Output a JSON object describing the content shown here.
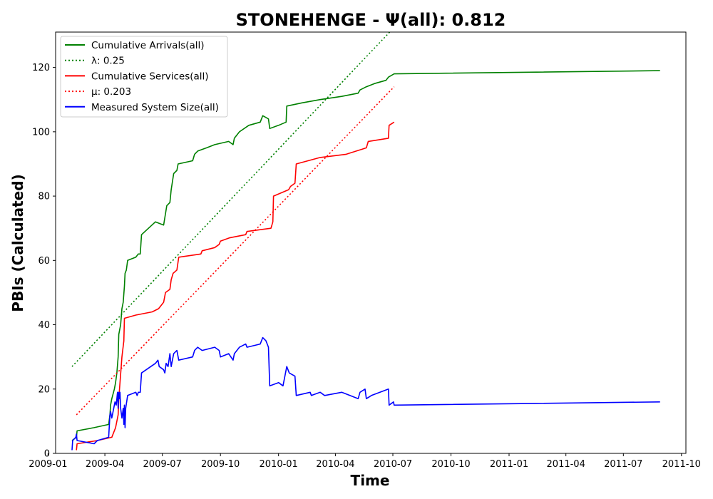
{
  "chart_data": {
    "type": "line",
    "title": "STONEHENGE -  Ψ(all): 0.812",
    "xlabel": "Time",
    "ylabel": "PBIs (Calculated)",
    "xlim": [
      "2009-01-13",
      "2011-10-08"
    ],
    "ylim": [
      0,
      131
    ],
    "x_ticks": [
      "2009-01",
      "2009-04",
      "2009-07",
      "2009-10",
      "2010-01",
      "2010-04",
      "2010-07",
      "2010-10",
      "2011-01",
      "2011-04",
      "2011-07",
      "2011-10"
    ],
    "y_ticks": [
      0,
      20,
      40,
      60,
      80,
      100,
      120
    ],
    "grid": false,
    "legend_position": "top-left",
    "legend": [
      {
        "label": "Cumulative Arrivals(all)",
        "color": "#008000",
        "style": "solid"
      },
      {
        "label": "λ: 0.25",
        "color": "#008000",
        "style": "dotted"
      },
      {
        "label": "Cumulative Services(all)",
        "color": "#ff0000",
        "style": "solid"
      },
      {
        "label": "μ: 0.203",
        "color": "#ff0000",
        "style": "dotted"
      },
      {
        "label": "Measured System Size(all)",
        "color": "#0000ff",
        "style": "solid"
      }
    ],
    "series": [
      {
        "name": "Cumulative Arrivals(all)",
        "color": "#008000",
        "style": "solid",
        "points": [
          [
            "2009-02-08",
            4
          ],
          [
            "2009-02-15",
            5
          ],
          [
            "2009-02-16",
            7
          ],
          [
            "2009-03-15",
            8
          ],
          [
            "2009-04-07",
            9
          ],
          [
            "2009-04-09",
            12
          ],
          [
            "2009-04-10",
            15
          ],
          [
            "2009-04-12",
            17
          ],
          [
            "2009-04-16",
            20
          ],
          [
            "2009-04-18",
            22
          ],
          [
            "2009-04-20",
            25
          ],
          [
            "2009-04-22",
            30
          ],
          [
            "2009-04-23",
            37
          ],
          [
            "2009-04-26",
            40
          ],
          [
            "2009-04-28",
            45
          ],
          [
            "2009-04-30",
            47
          ],
          [
            "2009-05-02",
            52
          ],
          [
            "2009-05-03",
            56
          ],
          [
            "2009-05-05",
            57
          ],
          [
            "2009-05-07",
            60
          ],
          [
            "2009-05-20",
            61
          ],
          [
            "2009-05-24",
            62
          ],
          [
            "2009-05-27",
            62
          ],
          [
            "2009-05-29",
            68
          ],
          [
            "2009-06-20",
            72
          ],
          [
            "2009-07-03",
            71
          ],
          [
            "2009-07-08",
            77
          ],
          [
            "2009-07-13",
            78
          ],
          [
            "2009-07-15",
            82
          ],
          [
            "2009-07-19",
            87
          ],
          [
            "2009-07-24",
            88
          ],
          [
            "2009-07-26",
            90
          ],
          [
            "2009-08-18",
            91
          ],
          [
            "2009-08-21",
            93
          ],
          [
            "2009-08-26",
            94
          ],
          [
            "2009-09-09",
            95
          ],
          [
            "2009-09-22",
            96
          ],
          [
            "2009-10-14",
            97
          ],
          [
            "2009-10-21",
            96
          ],
          [
            "2009-10-23",
            98
          ],
          [
            "2009-10-31",
            100
          ],
          [
            "2009-11-15",
            102
          ],
          [
            "2009-12-03",
            103
          ],
          [
            "2009-12-07",
            105
          ],
          [
            "2009-12-16",
            104
          ],
          [
            "2009-12-18",
            101
          ],
          [
            "2010-01-01",
            102
          ],
          [
            "2010-01-13",
            103
          ],
          [
            "2010-01-14",
            108
          ],
          [
            "2010-02-07",
            109
          ],
          [
            "2010-03-08",
            110
          ],
          [
            "2010-04-11",
            111
          ],
          [
            "2010-05-07",
            112
          ],
          [
            "2010-05-10",
            113
          ],
          [
            "2010-05-20",
            114
          ],
          [
            "2010-06-02",
            115
          ],
          [
            "2010-06-20",
            116
          ],
          [
            "2010-06-24",
            117
          ],
          [
            "2010-07-03",
            118
          ],
          [
            "2011-08-28",
            119
          ]
        ]
      },
      {
        "name": "λ: 0.25",
        "color": "#008000",
        "style": "dotted",
        "points": [
          [
            "2009-02-08",
            27
          ],
          [
            "2010-06-26",
            131
          ]
        ]
      },
      {
        "name": "Cumulative Services(all)",
        "color": "#ff0000",
        "style": "solid",
        "points": [
          [
            "2009-02-15",
            1
          ],
          [
            "2009-02-16",
            3
          ],
          [
            "2009-03-20",
            4
          ],
          [
            "2009-04-12",
            5
          ],
          [
            "2009-04-18",
            8
          ],
          [
            "2009-04-22",
            12
          ],
          [
            "2009-04-23",
            17
          ],
          [
            "2009-04-25",
            22
          ],
          [
            "2009-04-28",
            30
          ],
          [
            "2009-05-01",
            35
          ],
          [
            "2009-05-02",
            42
          ],
          [
            "2009-05-20",
            43
          ],
          [
            "2009-06-15",
            44
          ],
          [
            "2009-06-25",
            45
          ],
          [
            "2009-07-03",
            47
          ],
          [
            "2009-07-06",
            50
          ],
          [
            "2009-07-13",
            51
          ],
          [
            "2009-07-15",
            54
          ],
          [
            "2009-07-18",
            56
          ],
          [
            "2009-07-24",
            57
          ],
          [
            "2009-07-27",
            61
          ],
          [
            "2009-08-31",
            62
          ],
          [
            "2009-09-02",
            63
          ],
          [
            "2009-09-22",
            64
          ],
          [
            "2009-09-29",
            65
          ],
          [
            "2009-10-01",
            66
          ],
          [
            "2009-10-15",
            67
          ],
          [
            "2009-11-10",
            68
          ],
          [
            "2009-11-12",
            69
          ],
          [
            "2009-12-20",
            70
          ],
          [
            "2009-12-23",
            72
          ],
          [
            "2009-12-24",
            80
          ],
          [
            "2010-01-17",
            82
          ],
          [
            "2010-01-20",
            83
          ],
          [
            "2010-01-27",
            84
          ],
          [
            "2010-01-29",
            90
          ],
          [
            "2010-03-08",
            92
          ],
          [
            "2010-04-18",
            93
          ],
          [
            "2010-05-20",
            95
          ],
          [
            "2010-05-23",
            97
          ],
          [
            "2010-06-24",
            98
          ],
          [
            "2010-06-25",
            102
          ],
          [
            "2010-07-03",
            103
          ]
        ]
      },
      {
        "name": "μ: 0.203",
        "color": "#ff0000",
        "style": "dotted",
        "points": [
          [
            "2009-02-15",
            12
          ],
          [
            "2010-07-03",
            114
          ]
        ]
      },
      {
        "name": "Measured System Size(all)",
        "color": "#0000ff",
        "style": "solid",
        "points": [
          [
            "2009-02-08",
            1
          ],
          [
            "2009-02-09",
            4
          ],
          [
            "2009-02-14",
            5
          ],
          [
            "2009-02-15",
            6
          ],
          [
            "2009-02-16",
            4
          ],
          [
            "2009-03-15",
            3
          ],
          [
            "2009-03-20",
            4
          ],
          [
            "2009-04-07",
            5
          ],
          [
            "2009-04-09",
            12
          ],
          [
            "2009-04-10",
            13
          ],
          [
            "2009-04-12",
            11
          ],
          [
            "2009-04-15",
            14
          ],
          [
            "2009-04-17",
            16
          ],
          [
            "2009-04-19",
            15
          ],
          [
            "2009-04-21",
            19
          ],
          [
            "2009-04-22",
            14
          ],
          [
            "2009-04-23",
            19
          ],
          [
            "2009-04-24",
            17
          ],
          [
            "2009-04-25",
            19
          ],
          [
            "2009-04-26",
            14
          ],
          [
            "2009-04-28",
            11
          ],
          [
            "2009-04-30",
            14
          ],
          [
            "2009-05-01",
            9
          ],
          [
            "2009-05-02",
            15
          ],
          [
            "2009-05-03",
            8
          ],
          [
            "2009-05-04",
            14
          ],
          [
            "2009-05-07",
            18
          ],
          [
            "2009-05-20",
            19
          ],
          [
            "2009-05-22",
            18
          ],
          [
            "2009-05-24",
            19
          ],
          [
            "2009-05-27",
            19
          ],
          [
            "2009-05-29",
            25
          ],
          [
            "2009-06-20",
            28
          ],
          [
            "2009-06-24",
            29
          ],
          [
            "2009-06-26",
            27
          ],
          [
            "2009-07-03",
            26
          ],
          [
            "2009-07-05",
            25
          ],
          [
            "2009-07-07",
            28
          ],
          [
            "2009-07-10",
            27
          ],
          [
            "2009-07-13",
            31
          ],
          [
            "2009-07-15",
            27
          ],
          [
            "2009-07-19",
            31
          ],
          [
            "2009-07-24",
            32
          ],
          [
            "2009-07-27",
            29
          ],
          [
            "2009-08-18",
            30
          ],
          [
            "2009-08-21",
            32
          ],
          [
            "2009-08-26",
            33
          ],
          [
            "2009-09-02",
            32
          ],
          [
            "2009-09-22",
            33
          ],
          [
            "2009-09-29",
            32
          ],
          [
            "2009-10-01",
            30
          ],
          [
            "2009-10-14",
            31
          ],
          [
            "2009-10-21",
            29
          ],
          [
            "2009-10-23",
            31
          ],
          [
            "2009-10-31",
            33
          ],
          [
            "2009-11-10",
            34
          ],
          [
            "2009-11-12",
            33
          ],
          [
            "2009-12-03",
            34
          ],
          [
            "2009-12-07",
            36
          ],
          [
            "2009-12-12",
            35
          ],
          [
            "2009-12-16",
            33
          ],
          [
            "2009-12-18",
            21
          ],
          [
            "2010-01-01",
            22
          ],
          [
            "2010-01-08",
            21
          ],
          [
            "2010-01-14",
            27
          ],
          [
            "2010-01-18",
            25
          ],
          [
            "2010-01-27",
            24
          ],
          [
            "2010-01-29",
            18
          ],
          [
            "2010-02-20",
            19
          ],
          [
            "2010-02-22",
            18
          ],
          [
            "2010-03-08",
            19
          ],
          [
            "2010-03-15",
            18
          ],
          [
            "2010-04-11",
            19
          ],
          [
            "2010-05-07",
            17
          ],
          [
            "2010-05-10",
            19
          ],
          [
            "2010-05-18",
            20
          ],
          [
            "2010-05-20",
            17
          ],
          [
            "2010-05-28",
            18
          ],
          [
            "2010-06-24",
            20
          ],
          [
            "2010-06-25",
            15
          ],
          [
            "2010-07-02",
            16
          ],
          [
            "2010-07-03",
            15
          ],
          [
            "2011-08-28",
            16
          ]
        ]
      }
    ]
  }
}
